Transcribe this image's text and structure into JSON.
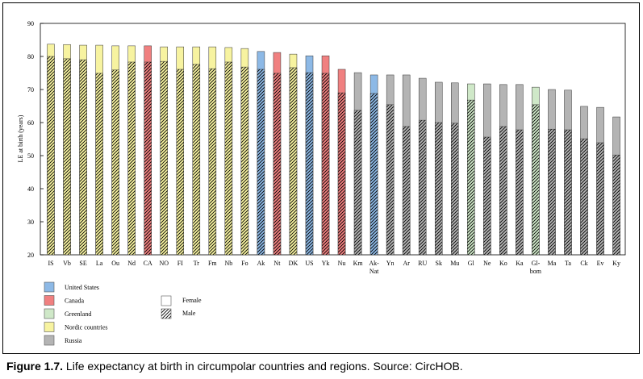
{
  "chart_data": {
    "type": "bar",
    "y_label": "LE at birth (years)",
    "ylim": [
      20,
      90
    ],
    "yticks": [
      20,
      30,
      40,
      50,
      60,
      70,
      80,
      90
    ],
    "categories": [
      "IS",
      "Vb",
      "SE",
      "La",
      "Ou",
      "Nd",
      "CA",
      "NO",
      "FI",
      "Tr",
      "Fm",
      "Nb",
      "Fo",
      "Ak",
      "Nt",
      "DK",
      "US",
      "Yk",
      "Nu",
      "Km",
      "Ak-\nNat",
      "Yn",
      "Ar",
      "RU",
      "Sk",
      "Mu",
      "Gl",
      "Ne",
      "Ko",
      "Ka",
      "Gl-\nbom",
      "Ma",
      "Ta",
      "Ck",
      "Ev",
      "Ky"
    ],
    "colors": [
      "#f7f3a0",
      "#f7f3a0",
      "#f7f3a0",
      "#f7f3a0",
      "#f7f3a0",
      "#f7f3a0",
      "#f08080",
      "#f7f3a0",
      "#f7f3a0",
      "#f7f3a0",
      "#f7f3a0",
      "#f7f3a0",
      "#f7f3a0",
      "#8db9e6",
      "#f08080",
      "#f7f3a0",
      "#8db9e6",
      "#f08080",
      "#f08080",
      "#b4b4b4",
      "#8db9e6",
      "#b4b4b4",
      "#b4b4b4",
      "#b4b4b4",
      "#b4b4b4",
      "#b4b4b4",
      "#cfe8c8",
      "#b4b4b4",
      "#b4b4b4",
      "#b4b4b4",
      "#cfe8c8",
      "#b4b4b4",
      "#b4b4b4",
      "#b4b4b4",
      "#b4b4b4",
      "#b4b4b4"
    ],
    "series": [
      {
        "name": "Female",
        "values": [
          83.7,
          83.6,
          83.4,
          83.4,
          83.2,
          83.2,
          83.2,
          82.9,
          82.9,
          82.9,
          82.9,
          82.7,
          82.4,
          81.5,
          81.2,
          80.7,
          80.2,
          80.2,
          76.1,
          75.1,
          74.4,
          74.4,
          74.4,
          73.4,
          72.2,
          72.0,
          71.7,
          71.7,
          71.5,
          71.5,
          70.7,
          70.0,
          69.8,
          64.9,
          64.6,
          61.7
        ]
      },
      {
        "name": "Male",
        "hatched": true,
        "values": [
          80.0,
          79.3,
          79.0,
          74.9,
          75.9,
          78.3,
          78.3,
          78.5,
          76.1,
          77.6,
          76.3,
          78.3,
          76.8,
          76.1,
          74.9,
          76.6,
          75.1,
          74.9,
          69.0,
          63.7,
          68.8,
          65.4,
          58.8,
          60.7,
          60.0,
          59.8,
          66.8,
          55.6,
          58.8,
          57.8,
          65.4,
          58.0,
          57.8,
          55.1,
          53.9,
          50.2
        ]
      }
    ],
    "regions": [
      {
        "name": "United States",
        "color": "#8db9e6"
      },
      {
        "name": "Canada",
        "color": "#f08080"
      },
      {
        "name": "Greenland",
        "color": "#cfe8c8"
      },
      {
        "name": "Nordic countries",
        "color": "#f7f3a0"
      },
      {
        "name": "Russia",
        "color": "#b4b4b4"
      }
    ]
  },
  "caption": {
    "label": "Figure 1.7.",
    "text": "Life expectancy at birth in circumpolar countries and regions. Source: CircHOB."
  }
}
